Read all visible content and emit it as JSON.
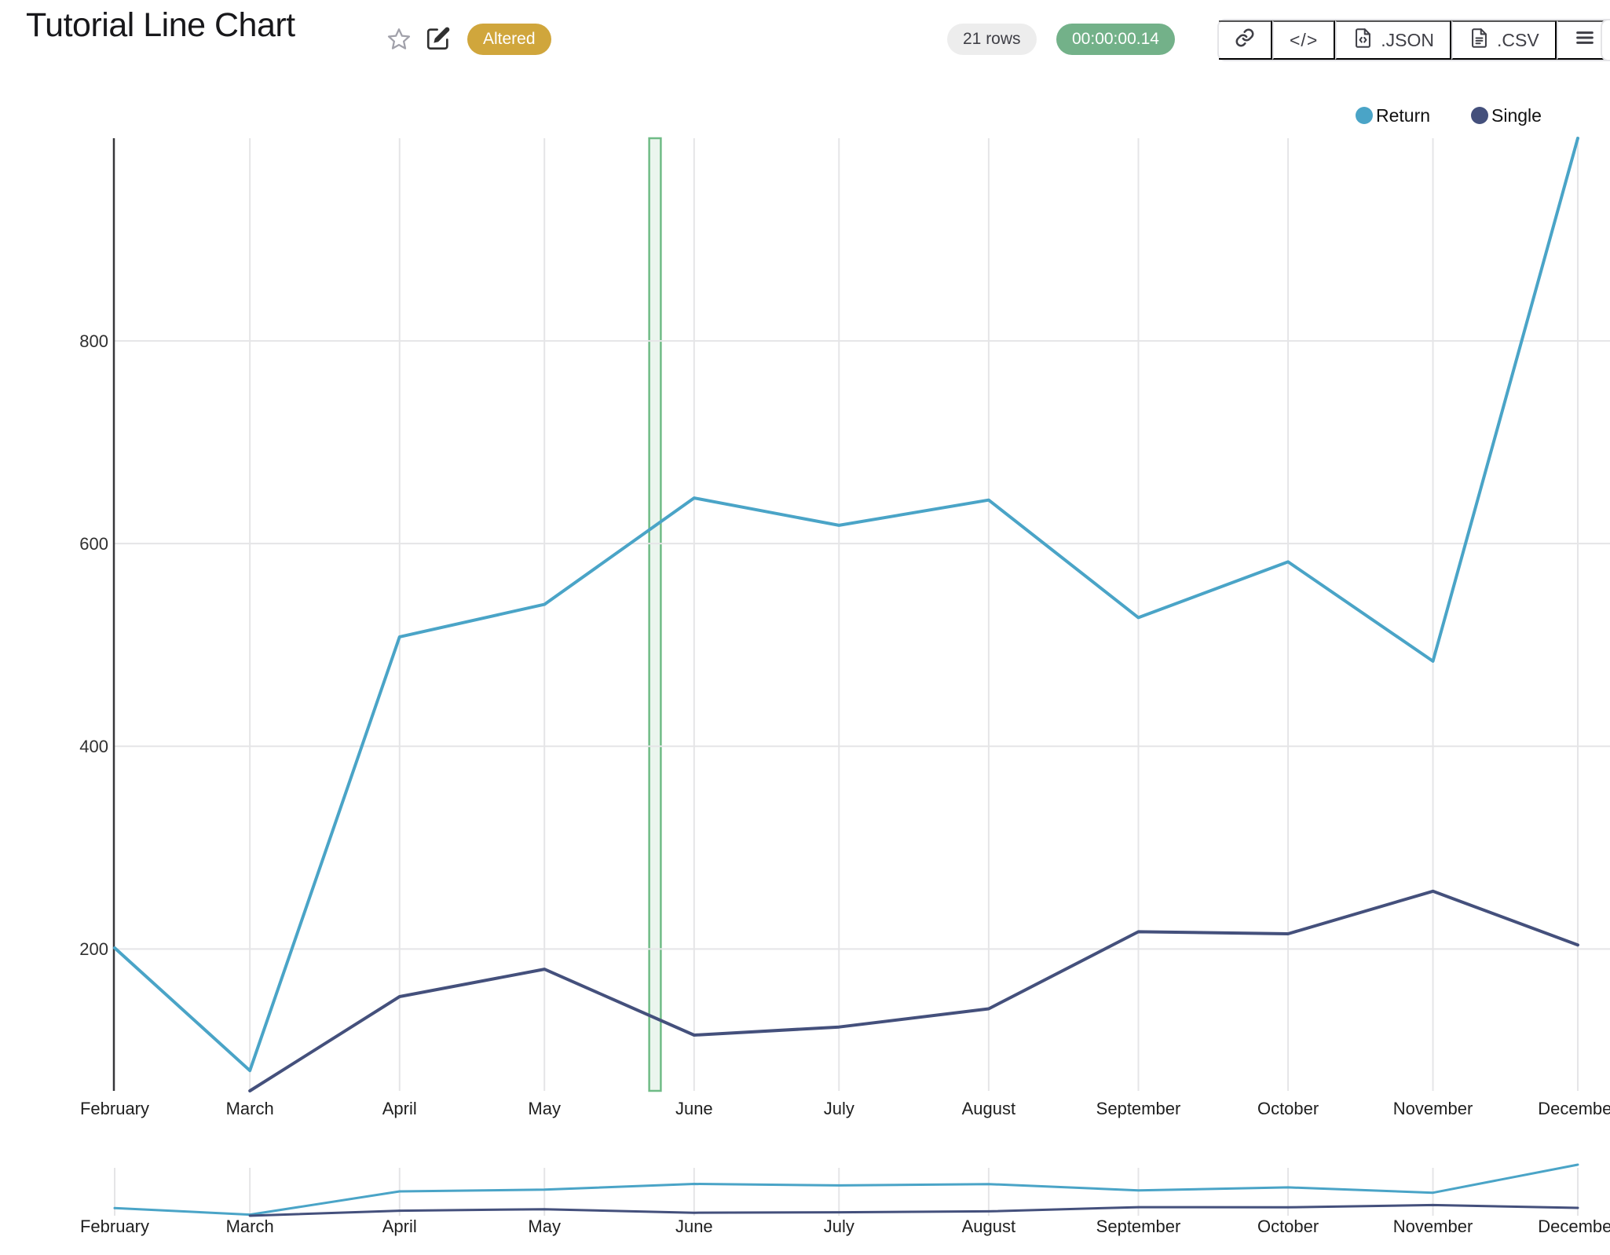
{
  "header": {
    "title": "Tutorial Line Chart",
    "altered_badge": "Altered",
    "rows_badge": "21 rows",
    "timer_badge": "00:00:00.14",
    "toolbar": {
      "link_label": "",
      "code_label": "</>",
      "json_label": ".JSON",
      "csv_label": ".CSV"
    }
  },
  "colors": {
    "accent_blue": "#4aa4c7",
    "accent_navy": "#44507c",
    "altered_gold": "#d0a63c",
    "timer_green": "#73b189",
    "rows_gray": "#ededed",
    "band_green": "#6fbb86",
    "gridline": "#e5e5e7",
    "axis": "#37373a",
    "tick_text": "#303030"
  },
  "legend": [
    {
      "label": "Return",
      "color": "#4aa4c7"
    },
    {
      "label": "Single",
      "color": "#44507c"
    }
  ],
  "chart_data": {
    "type": "line",
    "title": "Tutorial Line Chart",
    "xlabel": "",
    "ylabel": "",
    "categories": [
      "February",
      "March",
      "April",
      "May",
      "June",
      "July",
      "August",
      "September",
      "October",
      "November",
      "December"
    ],
    "category_day_offsets": [
      0,
      28,
      59,
      89,
      120,
      150,
      181,
      212,
      243,
      273,
      303
    ],
    "series": [
      {
        "name": "Return",
        "color": "#4aa4c7",
        "values": [
          201,
          80,
          508,
          540,
          645,
          618,
          643,
          527,
          582,
          484,
          1000
        ]
      },
      {
        "name": "Single",
        "color": "#44507c",
        "values": [
          null,
          60,
          153,
          180,
          115,
          123,
          141,
          217,
          215,
          257,
          204
        ]
      }
    ],
    "ylim": [
      60,
      1000
    ],
    "yticks": [
      200,
      400,
      600,
      800
    ],
    "grid": true,
    "legend_position": "top-right",
    "highlight_band": {
      "start_day": 110.7,
      "end_day": 113.1,
      "color": "#6fbb86"
    },
    "overview_strip": true,
    "row_count": 21
  }
}
